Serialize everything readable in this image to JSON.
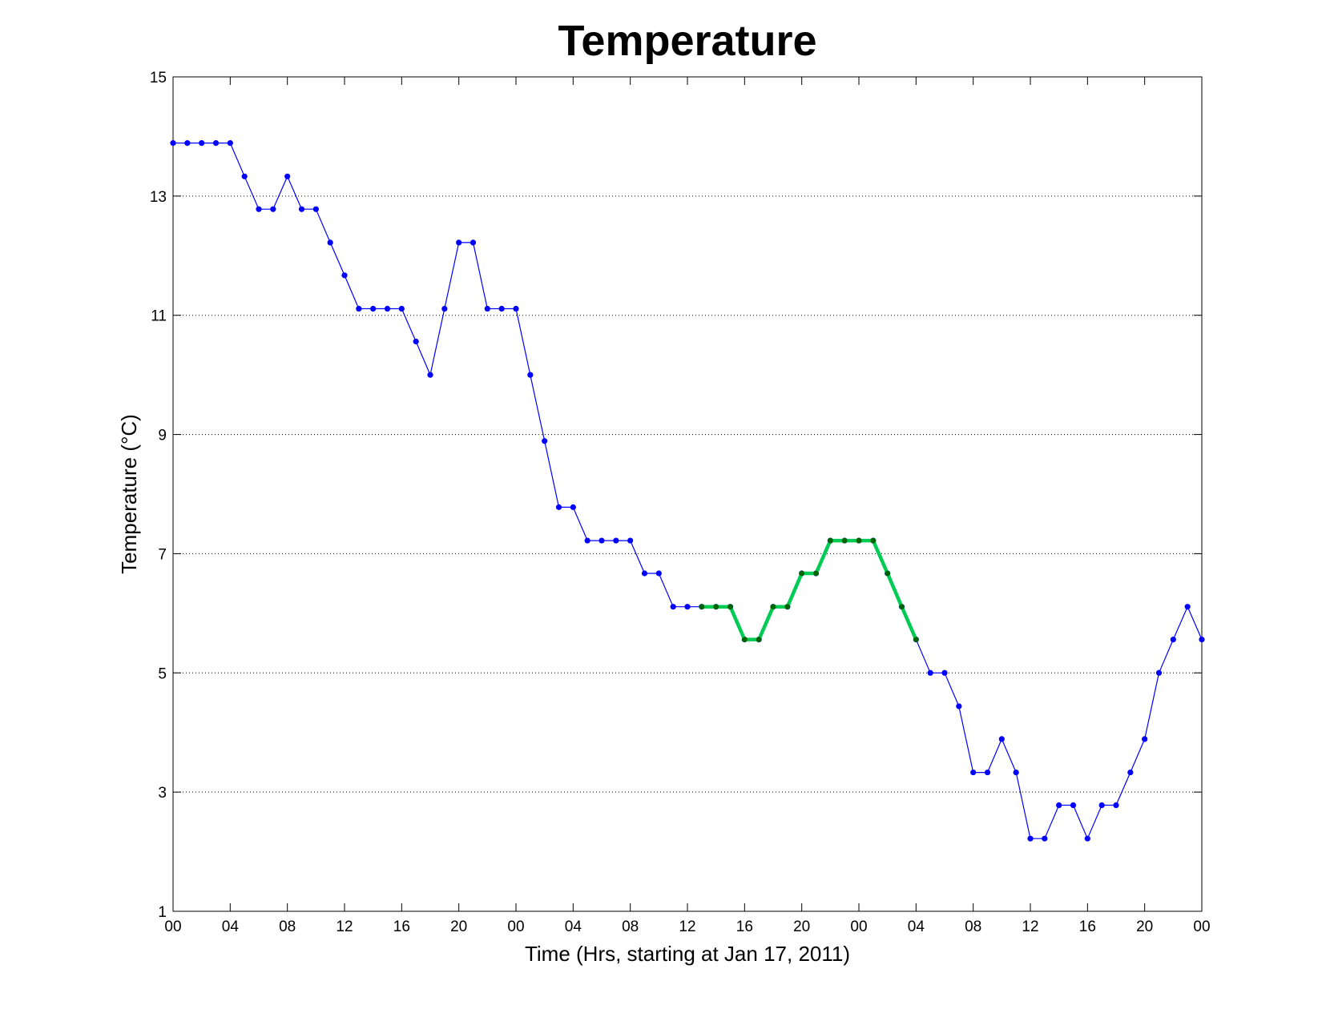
{
  "chart_data": {
    "type": "line",
    "title": "Temperature",
    "xlabel": "Time (Hrs, starting at Jan 17, 2011)",
    "ylabel": "Temperature (°C)",
    "x_unit": "hours",
    "xlim": [
      0,
      72
    ],
    "ylim": [
      1,
      15
    ],
    "xticks": [
      0,
      4,
      8,
      12,
      16,
      20,
      24,
      28,
      32,
      36,
      40,
      44,
      48,
      52,
      56,
      60,
      64,
      68,
      72
    ],
    "xtick_labels": [
      "00",
      "04",
      "08",
      "12",
      "16",
      "20",
      "00",
      "04",
      "08",
      "12",
      "16",
      "20",
      "00",
      "04",
      "08",
      "12",
      "16",
      "20",
      "00"
    ],
    "yticks": [
      1,
      3,
      5,
      7,
      9,
      11,
      13,
      15
    ],
    "ytick_labels": [
      "1",
      "3",
      "5",
      "7",
      "9",
      "11",
      "13",
      "15"
    ],
    "grid": "y-dotted",
    "series": [
      {
        "color": "#0000ff",
        "marker": "dot",
        "x": [
          0,
          1,
          2,
          3,
          4,
          5,
          6,
          7,
          8,
          9,
          10,
          11,
          12,
          13,
          14,
          15,
          16,
          17,
          18,
          19,
          20,
          21,
          22,
          23,
          24,
          25,
          26,
          27,
          28,
          29,
          30,
          31,
          32,
          33,
          34,
          35,
          36,
          37,
          38,
          39,
          40,
          41,
          42,
          43,
          44,
          45,
          46,
          47,
          48,
          49,
          50,
          51,
          52,
          53,
          54,
          55,
          56,
          57,
          58,
          59,
          60,
          61,
          62,
          63,
          64,
          65,
          66,
          67,
          68,
          69,
          70,
          71,
          72
        ],
        "values": [
          13.89,
          13.89,
          13.89,
          13.89,
          13.89,
          13.33,
          12.78,
          12.78,
          13.33,
          12.78,
          12.78,
          12.22,
          11.67,
          11.11,
          11.11,
          11.11,
          11.11,
          10.56,
          10.0,
          11.11,
          12.22,
          12.22,
          11.11,
          11.11,
          11.11,
          10.0,
          8.89,
          7.78,
          7.78,
          7.22,
          7.22,
          7.22,
          7.22,
          6.67,
          6.67,
          6.11,
          6.11,
          6.11,
          6.11,
          6.11,
          5.56,
          5.56,
          6.11,
          6.11,
          6.67,
          6.67,
          7.22,
          7.22,
          7.22,
          7.22,
          6.67,
          6.11,
          5.56,
          5.0,
          5.0,
          4.44,
          3.33,
          3.33,
          3.89,
          3.33,
          2.22,
          2.22,
          2.78,
          2.78,
          2.22,
          2.78,
          2.78,
          3.33,
          3.89,
          5.0,
          5.56,
          6.11,
          5.56
        ]
      },
      {
        "color": "#00cc55",
        "marker_color": "#006400",
        "marker": "dot",
        "x": [
          37,
          38,
          39,
          40,
          41,
          42,
          43,
          44,
          45,
          46,
          47,
          48,
          49,
          50,
          51,
          52
        ],
        "values": [
          6.11,
          6.11,
          6.11,
          5.56,
          5.56,
          6.11,
          6.11,
          6.67,
          6.67,
          7.22,
          7.22,
          7.22,
          7.22,
          6.67,
          6.11,
          5.56
        ]
      }
    ]
  }
}
